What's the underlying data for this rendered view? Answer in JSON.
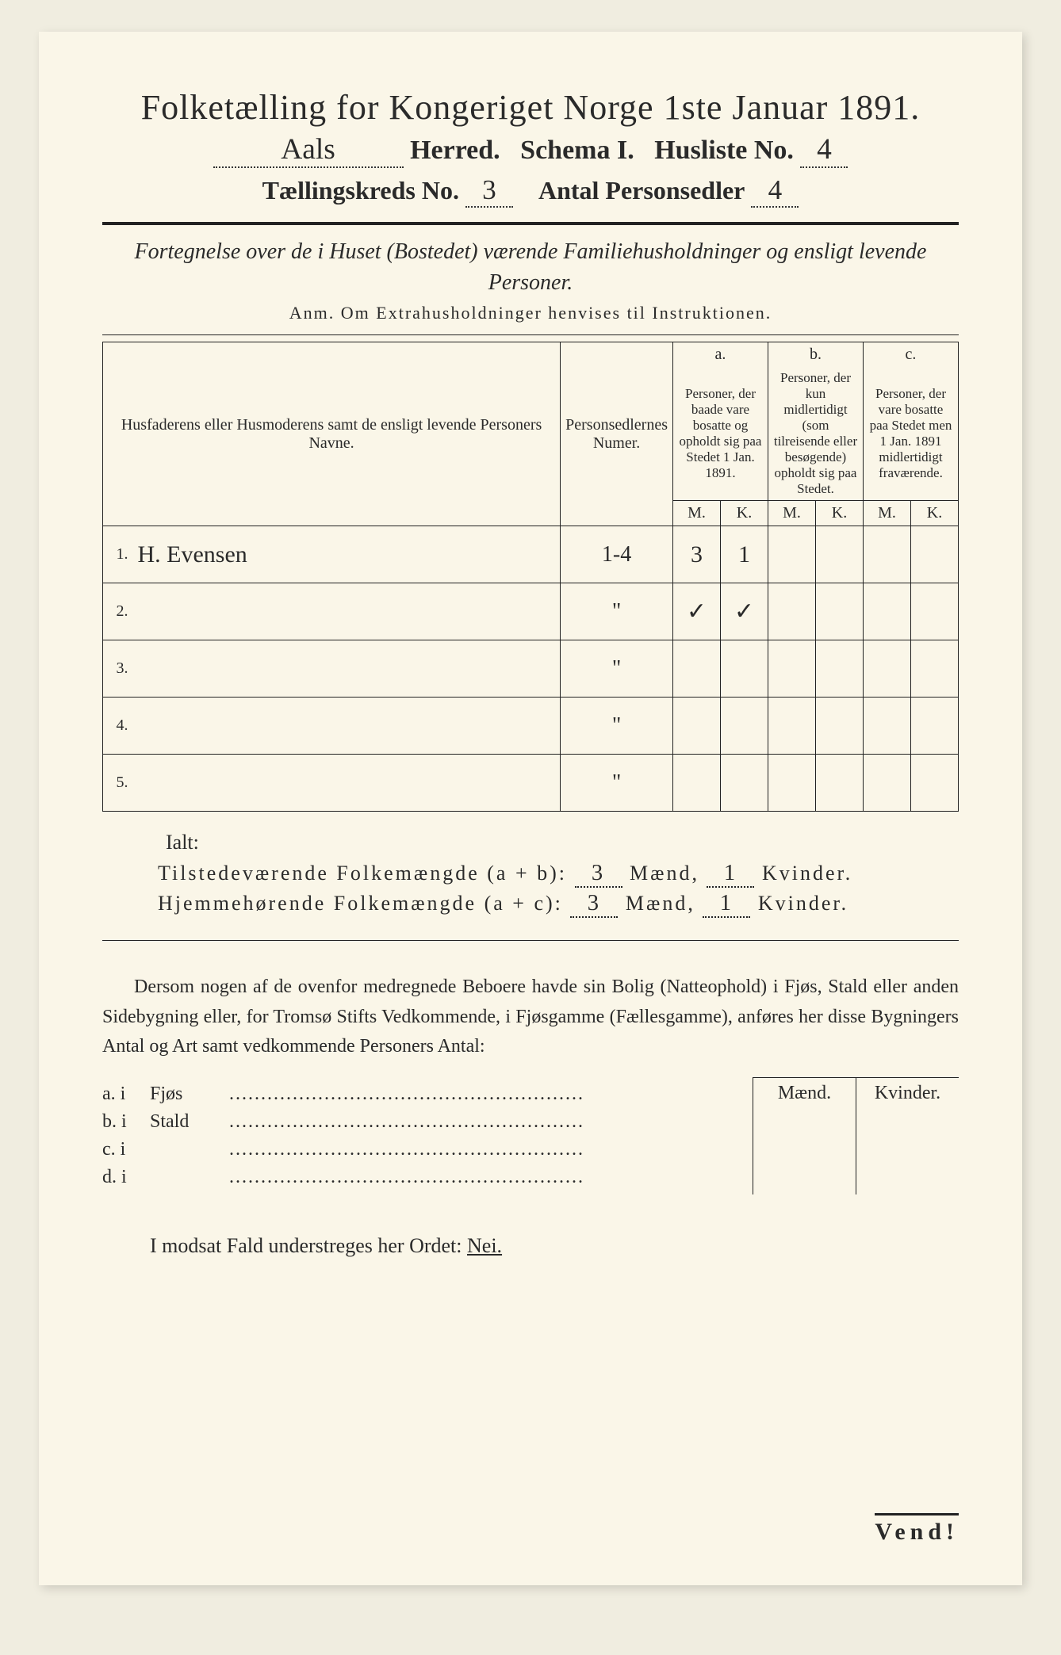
{
  "title": "Folketælling for Kongeriget Norge 1ste Januar 1891.",
  "herred_handwritten": "Aals",
  "line2_herred": "Herred.",
  "line2_schema": "Schema I.",
  "line2_husliste": "Husliste No.",
  "husliste_no": "4",
  "line3_tk": "Tællingskreds No.",
  "tk_no": "3",
  "line3_ap": "Antal Personsedler",
  "ap_no": "4",
  "intro": "Fortegnelse over de i Huset (Bostedet) værende Familiehusholdninger og ensligt levende Personer.",
  "anm": "Anm.  Om Extrahusholdninger henvises til Instruktionen.",
  "headers": {
    "name": "Husfaderens eller Husmoderens samt de ensligt levende Personers Navne.",
    "num": "Personsedlernes Numer.",
    "a_top": "a.",
    "a": "Personer, der baade vare bosatte og opholdt sig paa Stedet 1 Jan. 1891.",
    "b_top": "b.",
    "b": "Personer, der kun midlertidigt (som tilreisende eller besøgende) opholdt sig paa Stedet.",
    "c_top": "c.",
    "c": "Personer, der vare bosatte paa Stedet men 1 Jan. 1891 midlertidigt fraværende.",
    "M": "M.",
    "K": "K."
  },
  "rows": [
    {
      "n": "1.",
      "name": "H. Evensen",
      "num": "1-4",
      "aM": "3",
      "aK": "1",
      "bM": "",
      "bK": "",
      "cM": "",
      "cK": ""
    },
    {
      "n": "2.",
      "name": "",
      "num": "\"",
      "aM": "✓",
      "aK": "✓",
      "bM": "",
      "bK": "",
      "cM": "",
      "cK": ""
    },
    {
      "n": "3.",
      "name": "",
      "num": "\"",
      "aM": "",
      "aK": "",
      "bM": "",
      "bK": "",
      "cM": "",
      "cK": ""
    },
    {
      "n": "4.",
      "name": "",
      "num": "\"",
      "aM": "",
      "aK": "",
      "bM": "",
      "bK": "",
      "cM": "",
      "cK": ""
    },
    {
      "n": "5.",
      "name": "",
      "num": "\"",
      "aM": "",
      "aK": "",
      "bM": "",
      "bK": "",
      "cM": "",
      "cK": ""
    }
  ],
  "ialt": "Ialt:",
  "tot1_label": "Tilstedeværende Folkemængde (a + b):",
  "tot2_label": "Hjemmehørende Folkemængde (a + c):",
  "tot1_m": "3",
  "tot1_k": "1",
  "tot2_m": "3",
  "tot2_k": "1",
  "maend": "Mænd,",
  "kvinder": "Kvinder.",
  "para": "Dersom nogen af de ovenfor medregnede Beboere havde sin Bolig (Natteophold) i Fjøs, Stald eller anden Sidebygning eller, for Tromsø Stifts Vedkommende, i Fjøsgamme (Fællesgamme), anføres her disse Bygningers Antal og Art samt vedkommende Personers Antal:",
  "side_cols": {
    "m": "Mænd.",
    "k": "Kvinder."
  },
  "side_rows": [
    {
      "l": "a.  i",
      "t": "Fjøs"
    },
    {
      "l": "b.  i",
      "t": "Stald"
    },
    {
      "l": "c.  i",
      "t": ""
    },
    {
      "l": "d.  i",
      "t": ""
    }
  ],
  "nei": "I modsat Fald understreges her Ordet:",
  "nei_word": "Nei.",
  "vend": "Vend!",
  "colors": {
    "paper": "#faf6e8",
    "ink": "#2a2a2a",
    "border": "#222"
  }
}
